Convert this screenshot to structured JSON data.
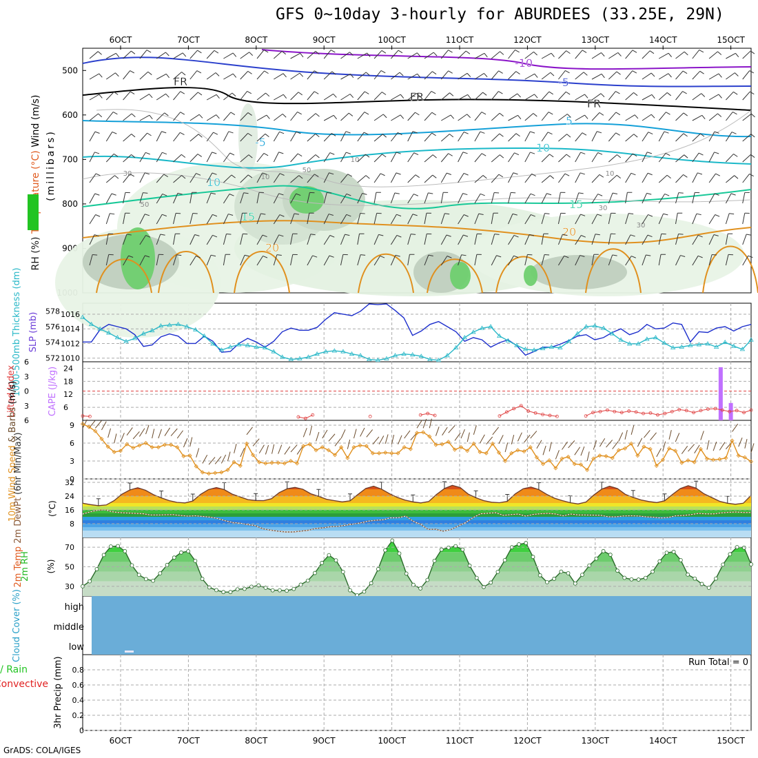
{
  "title": "GFS 0~10day 3-hourly for ABURDEES (33.25E, 29N)",
  "footer": "GrADS: COLA/IGES",
  "x_ticks": [
    "6OCT",
    "7OCT",
    "8OCT",
    "9OCT",
    "10OCT",
    "11OCT",
    "12OCT",
    "13OCT",
    "14OCT",
    "15OCT"
  ],
  "colors": {
    "temp_label": "#e05a1e",
    "rh_green": "#22c422",
    "wind_label": "#000000",
    "slp": "#1c2ecc",
    "thick": "#2ab8c8",
    "cape": "#c070ff",
    "li": "#e04040",
    "wind10": "#e0901e",
    "rain": "#22c422",
    "conv": "#e02020",
    "cloud": "#6aadd8",
    "rh2m": "#22b822"
  },
  "chart_data": [
    {
      "type": "heatmap",
      "panel": "upper-air",
      "ylabel_parts": [
        "RH (%)",
        "Temperature (°C)",
        "Wind (m/s)"
      ],
      "ylabel_units": "(millibars)",
      "y_ticks": [
        500,
        600,
        700,
        800,
        900,
        1000
      ],
      "ylim": [
        450,
        1000
      ],
      "isotherm_labels": [
        "-10",
        "-5",
        "FR",
        "FR",
        "FR",
        "-5",
        "5",
        "10",
        "10",
        "15",
        "15",
        "20",
        "20"
      ],
      "rh_labels": [
        "30",
        "50",
        "10",
        "50",
        "10",
        "10",
        "30",
        "30"
      ]
    },
    {
      "type": "line",
      "panel": "slp-thickness",
      "ylabel_left": "1000-500mb Thickness (dm)",
      "ylabel_right": "SLP (mb)",
      "y_ticks_left": [
        572,
        574,
        576,
        578
      ],
      "y_ticks_right": [
        1010,
        1012,
        1014,
        1016
      ],
      "ylim_left": [
        571.5,
        579
      ],
      "ylim_right": [
        1009.5,
        1017.5
      ],
      "series": [
        {
          "name": "SLP (mb)",
          "values": [
            1012.2,
            1012.2,
            1013.9,
            1014.6,
            1014.3,
            1014.0,
            1013.2,
            1011.6,
            1011.8,
            1012.9,
            1013.3,
            1013.0,
            1012.0,
            1012.0,
            1013.0,
            1012.3,
            1010.8,
            1010.9,
            1012.0,
            1012.7,
            1012.2,
            1011.5,
            1012.3,
            1013.6,
            1014.1,
            1013.8,
            1013.8,
            1014.2,
            1015.3,
            1016.2,
            1016.0,
            1015.8,
            1016.4,
            1017.4,
            1017.3,
            1017.4,
            1016.5,
            1015.5,
            1013.1,
            1013.7,
            1014.6,
            1015.0,
            1014.3,
            1013.6,
            1012.3,
            1012.8,
            1012.5,
            1011.5,
            1012.1,
            1012.5,
            1011.7,
            1010.4,
            1010.9,
            1011.5,
            1011.5,
            1011.9,
            1012.4,
            1013.0,
            1013.2,
            1012.5,
            1012.8,
            1013.5,
            1014.0,
            1013.2,
            1013.6,
            1014.6,
            1014.0,
            1014.1,
            1014.8,
            1014.6,
            1012.2,
            1013.6,
            1013.5,
            1014.1,
            1014.3,
            1013.7,
            1014.3,
            1014.6
          ]
        },
        {
          "name": "1000-500mb Thickness (dm)",
          "values": [
            577.2,
            576.3,
            575.7,
            575.2,
            574.6,
            574.1,
            574.5,
            575.1,
            575.5,
            576.1,
            576.2,
            576.3,
            576.0,
            575.6,
            574.8,
            573.8,
            573.0,
            573.4,
            573.7,
            573.6,
            573.4,
            573.3,
            572.8,
            572.1,
            571.8,
            571.9,
            572.1,
            572.5,
            572.8,
            572.9,
            572.8,
            572.5,
            572.3,
            571.8,
            571.7,
            571.9,
            572.3,
            572.5,
            572.4,
            572.2,
            571.8,
            571.7,
            572.3,
            573.3,
            574.6,
            575.3,
            575.8,
            576.0,
            574.8,
            574.2,
            573.6,
            573.1,
            573.0,
            573.2,
            573.4,
            573.3,
            574.1,
            575.1,
            576.0,
            576.1,
            575.8,
            575.1,
            574.3,
            573.8,
            573.8,
            574.4,
            574.6,
            573.9,
            573.3,
            573.4,
            573.6,
            573.7,
            573.8,
            573.4,
            574.0,
            573.5,
            573.1,
            574.3
          ]
        }
      ]
    },
    {
      "type": "bar",
      "panel": "cape-li",
      "ylabel_left": "Lifted Index",
      "ylabel_right": "CAPE (J/kg)",
      "y_ticks_left": [
        -6,
        -3,
        0,
        3,
        6
      ],
      "y_ticks_left_labels": [
        "6",
        "3",
        "0",
        "3",
        "6"
      ],
      "y_ticks_right": [
        6,
        12,
        18,
        24
      ],
      "ylim_right": [
        0,
        27
      ],
      "cape_bars": [
        {
          "x": 88.0,
          "value": 24.5
        },
        {
          "x": 89.0,
          "value": 8.0
        }
      ],
      "li_values": [
        5.1,
        5.2,
        null,
        null,
        null,
        null,
        null,
        null,
        null,
        null,
        null,
        null,
        null,
        null,
        null,
        null,
        null,
        null,
        null,
        null,
        null,
        null,
        null,
        null,
        null,
        null,
        null,
        null,
        null,
        null,
        5.3,
        5.6,
        4.9,
        null,
        null,
        null,
        null,
        null,
        null,
        null,
        5.2,
        null,
        null,
        null,
        null,
        null,
        null,
        4.9,
        4.6,
        5.0,
        null,
        null,
        null,
        null,
        null,
        null,
        null,
        null,
        5.1,
        4.3,
        3.6,
        3.0,
        4.1,
        4.5,
        4.8,
        5.0,
        5.2,
        null,
        null,
        null,
        5.1,
        4.4,
        4.2,
        3.9,
        4.2,
        4.4,
        4.1,
        4.3,
        4.6,
        4.5,
        4.9,
        4.6,
        4.2,
        3.8,
        4.0,
        4.4,
        4.0,
        3.7,
        3.6,
        3.9,
        4.2,
        4.0,
        4.4,
        3.9
      ]
    },
    {
      "type": "line",
      "panel": "10m-wind",
      "ylabel": "10m Wind Speed & Barbs (m/s)",
      "y_ticks": [
        0,
        3,
        6,
        9
      ],
      "ylim": [
        0,
        9.8
      ],
      "values": [
        9.2,
        8.7,
        8.0,
        6.7,
        5.4,
        4.5,
        4.7,
        5.8,
        5.2,
        5.6,
        6.0,
        5.3,
        5.3,
        5.7,
        5.7,
        5.3,
        3.8,
        3.9,
        2.1,
        1.1,
        0.9,
        1.0,
        1.1,
        1.5,
        2.8,
        2.2,
        5.9,
        4.0,
        2.8,
        2.6,
        2.7,
        2.7,
        2.6,
        3.0,
        2.6,
        5.5,
        5.8,
        4.8,
        5.3,
        4.8,
        4.0,
        5.3,
        3.5,
        5.3,
        5.6,
        5.5,
        4.3,
        4.3,
        4.4,
        4.3,
        4.3,
        5.3,
        5.0,
        7.7,
        7.8,
        7.1,
        5.7,
        5.8,
        6.2,
        4.9,
        5.3,
        4.7,
        5.9,
        4.5,
        4.3,
        5.9,
        4.4,
        3.0,
        4.3,
        4.8,
        4.6,
        5.3,
        3.6,
        2.5,
        3.1,
        1.8,
        3.4,
        3.7,
        2.5,
        2.4,
        1.5,
        3.4,
        3.9,
        3.8,
        3.5,
        4.8,
        5.1,
        5.9,
        3.9,
        5.4,
        5.0,
        2.2,
        3.2,
        5.1,
        4.7,
        2.7,
        3.1,
        2.8,
        5.0,
        3.4,
        3.2,
        3.3,
        3.5,
        6.4,
        3.9,
        3.6,
        2.9
      ]
    },
    {
      "type": "area",
      "panel": "2m-temp",
      "ylabel": "2m Temp 2m DewPt (6hr Min/Max)",
      "ylabel_units": "(°C)",
      "y_ticks": [
        8,
        16,
        24,
        32
      ],
      "ylim": [
        0,
        34
      ],
      "temp": [
        19.9,
        19.1,
        18.5,
        18.9,
        21.4,
        25.2,
        27.6,
        28.9,
        27.4,
        24.9,
        23.0,
        21.4,
        20.4,
        20.1,
        21.2,
        25.1,
        27.8,
        29.0,
        27.8,
        25.2,
        23.6,
        22.0,
        21.5,
        21.4,
        22.5,
        26.1,
        28.3,
        29.1,
        28.0,
        25.4,
        23.9,
        22.2,
        21.4,
        20.7,
        21.3,
        25.0,
        28.5,
        29.8,
        28.1,
        25.5,
        23.3,
        21.7,
        20.7,
        20.1,
        20.9,
        25.0,
        28.4,
        30.3,
        29.0,
        25.3,
        23.1,
        21.4,
        20.5,
        20.2,
        21.0,
        25.3,
        28.3,
        29.3,
        27.8,
        25.1,
        22.8,
        21.4,
        20.2,
        19.5,
        20.6,
        24.7,
        28.1,
        29.8,
        28.4,
        25.1,
        23.3,
        21.8,
        20.9,
        20.3,
        21.3,
        25.0,
        28.4,
        30.1,
        28.7,
        25.4,
        23.2,
        21.0,
        19.9,
        19.3,
        19.9,
        24.5
      ],
      "dewpoint": [
        13.6,
        14.9,
        15.8,
        16.0,
        14.9,
        14.4,
        14.2,
        14.0,
        13.8,
        13.1,
        13.1,
        13.2,
        13.3,
        12.8,
        12.4,
        12.6,
        12.2,
        11.8,
        11.0,
        9.7,
        8.7,
        8.3,
        7.5,
        6.9,
        5.1,
        4.3,
        3.7,
        3.2,
        3.2,
        3.7,
        4.2,
        5.2,
        5.6,
        6.3,
        6.5,
        7.1,
        7.8,
        8.5,
        9.5,
        10.0,
        10.3,
        11.4,
        11.5,
        12.4,
        9.4,
        7.7,
        4.7,
        4.8,
        3.7,
        4.6,
        6.6,
        8.7,
        11.6,
        13.8,
        14.1,
        14.4,
        12.9,
        13.3,
        13.6,
        12.4,
        13.4,
        13.8,
        14.0,
        13.6,
        12.6,
        13.6,
        13.1,
        13.1,
        13.0,
        12.9,
        12.0,
        12.0,
        12.5,
        12.6,
        12.5,
        12.0,
        11.8,
        11.3,
        11.7,
        12.6,
        12.8,
        13.3,
        14.0,
        13.7,
        13.7,
        14.3,
        14.6,
        14.8,
        14.5,
        14.5
      ]
    },
    {
      "type": "area",
      "panel": "2m-rh",
      "ylabel": "2m RH",
      "ylabel_units": "(%)",
      "y_ticks": [
        30,
        50,
        70
      ],
      "ylim": [
        20,
        80
      ],
      "values": [
        30.0,
        35.1,
        47.6,
        62.1,
        70.8,
        71.2,
        66.0,
        51.5,
        41.7,
        37.4,
        35.7,
        43.3,
        51.9,
        59.4,
        64.6,
        65.9,
        56.0,
        37.6,
        28.9,
        26.1,
        24.1,
        24.1,
        26.9,
        27.4,
        29.6,
        30.9,
        28.5,
        25.9,
        25.9,
        25.5,
        27.3,
        31.7,
        35.8,
        43.6,
        54.0,
        61.9,
        56.6,
        44.8,
        25.9,
        20.8,
        24.5,
        33.2,
        47.6,
        66.9,
        76.8,
        63.6,
        43.0,
        31.5,
        27.8,
        36.5,
        56.1,
        67.6,
        69.6,
        71.1,
        67.6,
        51.1,
        38.6,
        29.3,
        33.8,
        44.8,
        56.8,
        70.0,
        73.0,
        74.3,
        60.1,
        41.3,
        34.2,
        37.7,
        45.0,
        43.4,
        32.9,
        41.8,
        51.3,
        58.4,
        66.0,
        62.3,
        46.0,
        38.7,
        37.1,
        36.9,
        38.6,
        45.0,
        55.6,
        64.4,
        65.3,
        56.8,
        42.0,
        37.9,
        32.4,
        28.5,
        37.9,
        52.2,
        62.9,
        70.1,
        69.6,
        52.5
      ]
    },
    {
      "type": "heatmap",
      "panel": "cloud-cover",
      "ylabel": "Cloud Cover (%)",
      "levels": [
        "high",
        "middle",
        "low"
      ]
    },
    {
      "type": "bar",
      "panel": "precip",
      "ylabel_left": "Total / Rain",
      "ylabel_left2": "Convective",
      "ylabel": "3hr Precip (mm)",
      "y_ticks": [
        0,
        0.2,
        0.4,
        0.6,
        0.8
      ],
      "ylim": [
        0,
        1
      ],
      "run_total_label": "Run Total = 0",
      "values": []
    }
  ]
}
